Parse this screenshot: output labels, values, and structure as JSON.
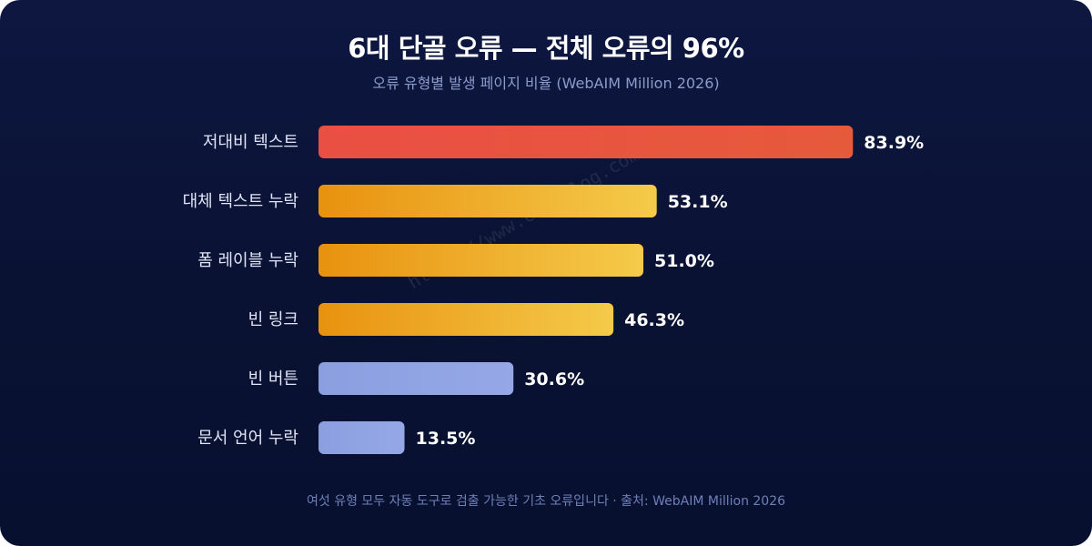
{
  "header": {
    "title": "6대 단골 오류 — 전체 오류의 96%",
    "subtitle": "오류 유형별 발생 페이지 비율 (WebAIM Million 2026)"
  },
  "footer": {
    "note": "여섯 유형 모두 자동 도구로 검출 가능한 기초 오류입니다 · 출처: WebAIM Million 2026"
  },
  "watermark": {
    "text": "https://www.codeslog.com"
  },
  "colors": {
    "background": "#0b1438",
    "bar_top": "#e8553f",
    "bar_mid_start": "#e8920f",
    "bar_mid_end": "#f5ca4a",
    "bar_low": "#8fa3e3",
    "label_text": "#dfe5f7",
    "value_text": "#ffffff"
  },
  "chart_data": {
    "type": "bar",
    "orientation": "horizontal",
    "unit": "%",
    "categories": [
      "저대비 텍스트",
      "대체 텍스트 누락",
      "폼 레이블 누락",
      "빈 링크",
      "빈 버튼",
      "문서 언어 누락"
    ],
    "values": [
      83.9,
      53.1,
      51.0,
      46.3,
      30.6,
      13.5
    ],
    "value_labels": [
      "83.9%",
      "53.1%",
      "51.0%",
      "46.3%",
      "30.6%",
      "13.5%"
    ],
    "bar_styles": [
      "red",
      "amber",
      "amber",
      "amber",
      "lavender",
      "lavender"
    ],
    "xlim": [
      0,
      100
    ],
    "grid": false,
    "legend": "none"
  }
}
